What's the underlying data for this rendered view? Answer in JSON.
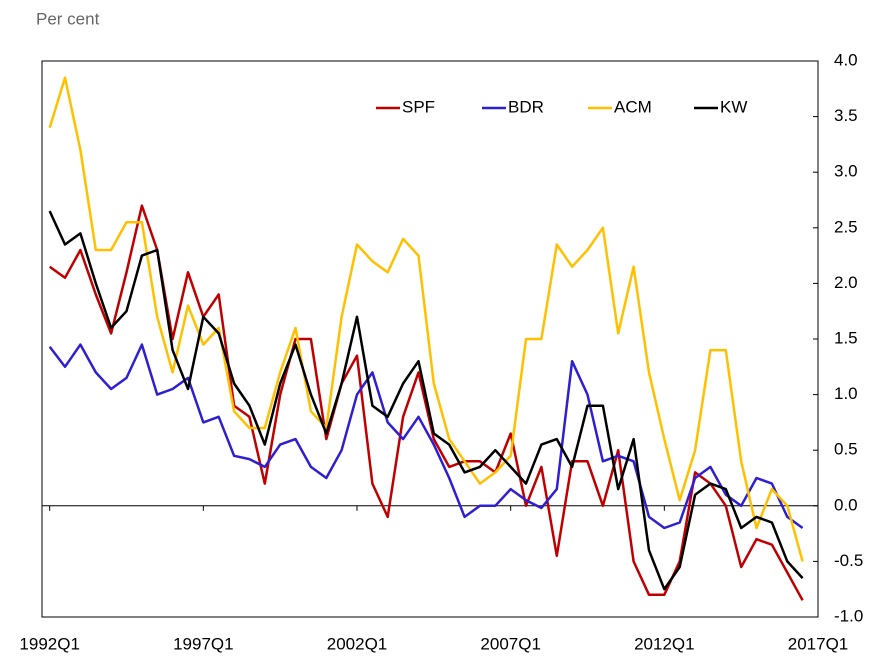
{
  "chart_data": {
    "type": "line",
    "y_unit_label": "Per cent",
    "x": [
      1992,
      1992.5,
      1993,
      1993.5,
      1994,
      1994.5,
      1995,
      1995.5,
      1996,
      1996.5,
      1997,
      1997.5,
      1998,
      1998.5,
      1999,
      1999.5,
      2000,
      2000.5,
      2001,
      2001.5,
      2002,
      2002.5,
      2003,
      2003.5,
      2004,
      2004.5,
      2005,
      2005.5,
      2006,
      2006.5,
      2007,
      2007.5,
      2008,
      2008.5,
      2009,
      2009.5,
      2010,
      2010.5,
      2011,
      2011.5,
      2012,
      2012.5,
      2013,
      2013.5,
      2014,
      2014.5,
      2015,
      2015.5,
      2016,
      2016.5
    ],
    "series": [
      {
        "name": "SPF",
        "color": "#c00000",
        "values": [
          2.15,
          2.05,
          2.3,
          1.9,
          1.55,
          2.1,
          2.7,
          2.3,
          1.5,
          2.1,
          1.7,
          1.9,
          0.9,
          0.8,
          0.2,
          1.0,
          1.5,
          1.5,
          0.6,
          1.1,
          1.35,
          0.2,
          -0.1,
          0.8,
          1.2,
          0.6,
          0.35,
          0.4,
          0.4,
          0.3,
          0.65,
          0.0,
          0.35,
          -0.45,
          0.4,
          0.4,
          0.0,
          0.5,
          -0.5,
          -0.8,
          -0.8,
          -0.5,
          0.3,
          0.2,
          0.0,
          -0.55,
          -0.3,
          -0.35,
          -0.6,
          -0.85
        ]
      },
      {
        "name": "BDR",
        "color": "#2e1fd0",
        "values": [
          1.43,
          1.25,
          1.45,
          1.2,
          1.05,
          1.15,
          1.45,
          1.0,
          1.05,
          1.15,
          0.75,
          0.8,
          0.45,
          0.42,
          0.35,
          0.55,
          0.6,
          0.35,
          0.25,
          0.5,
          1.0,
          1.2,
          0.75,
          0.6,
          0.8,
          0.55,
          0.25,
          -0.1,
          0.0,
          0.0,
          0.15,
          0.05,
          -0.02,
          0.15,
          1.3,
          1.0,
          0.4,
          0.45,
          0.4,
          -0.1,
          -0.2,
          -0.15,
          0.25,
          0.35,
          0.1,
          0.0,
          0.25,
          0.2,
          -0.1,
          -0.2
        ]
      },
      {
        "name": "ACM",
        "color": "#ffc000",
        "values": [
          3.4,
          3.85,
          3.2,
          2.3,
          2.3,
          2.55,
          2.55,
          1.7,
          1.2,
          1.8,
          1.45,
          1.6,
          0.85,
          0.7,
          0.7,
          1.2,
          1.6,
          0.85,
          0.7,
          1.7,
          2.35,
          2.2,
          2.1,
          2.4,
          2.25,
          1.1,
          0.6,
          0.4,
          0.2,
          0.3,
          0.45,
          1.5,
          1.5,
          2.35,
          2.15,
          2.3,
          2.5,
          1.55,
          2.15,
          1.2,
          0.6,
          0.05,
          0.5,
          1.4,
          1.4,
          0.4,
          -0.2,
          0.15,
          0.0,
          -0.5
        ]
      },
      {
        "name": "KW",
        "color": "#000000",
        "values": [
          2.65,
          2.35,
          2.45,
          2.0,
          1.6,
          1.75,
          2.25,
          2.3,
          1.4,
          1.05,
          1.7,
          1.55,
          1.1,
          0.9,
          0.55,
          1.1,
          1.45,
          1.0,
          0.65,
          1.1,
          1.7,
          0.9,
          0.8,
          1.1,
          1.3,
          0.65,
          0.55,
          0.3,
          0.35,
          0.5,
          0.35,
          0.2,
          0.55,
          0.6,
          0.35,
          0.9,
          0.9,
          0.15,
          0.6,
          -0.4,
          -0.75,
          -0.55,
          0.1,
          0.2,
          0.15,
          -0.2,
          -0.1,
          -0.15,
          -0.5,
          -0.65
        ]
      }
    ],
    "xlim": [
      1991.75,
      2017
    ],
    "xticks": [
      {
        "value": 1992,
        "label": "1992Q1"
      },
      {
        "value": 1997,
        "label": "1997Q1"
      },
      {
        "value": 2002,
        "label": "2002Q1"
      },
      {
        "value": 2007,
        "label": "2007Q1"
      },
      {
        "value": 2012,
        "label": "2012Q1"
      },
      {
        "value": 2017,
        "label": "2017Q1"
      }
    ],
    "ylim": [
      -1,
      4
    ],
    "yticks": [
      {
        "value": -1,
        "label": "-1.0"
      },
      {
        "value": -0.5,
        "label": "-0.5"
      },
      {
        "value": 0,
        "label": "0.0"
      },
      {
        "value": 0.5,
        "label": "0.5"
      },
      {
        "value": 1,
        "label": "1.0"
      },
      {
        "value": 1.5,
        "label": "1.5"
      },
      {
        "value": 2,
        "label": "2.0"
      },
      {
        "value": 2.5,
        "label": "2.5"
      },
      {
        "value": 3,
        "label": "3.0"
      },
      {
        "value": 3.5,
        "label": "3.5"
      },
      {
        "value": 4,
        "label": "4.0"
      }
    ],
    "legend": "top"
  }
}
